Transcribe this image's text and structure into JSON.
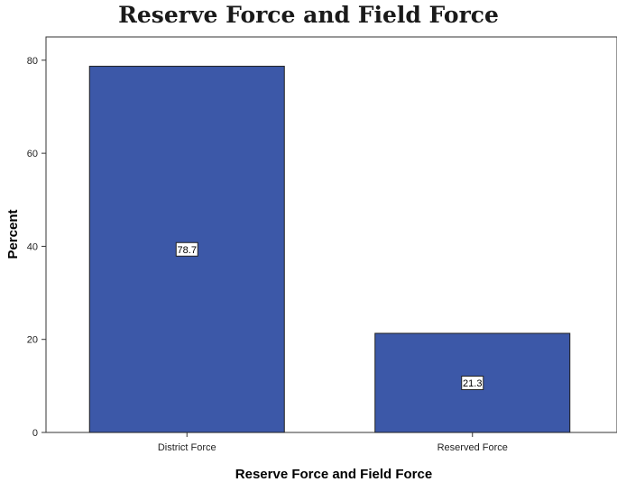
{
  "chart_data": {
    "type": "bar",
    "title": "Reserve Force and Field Force",
    "xlabel": "Reserve Force and Field Force",
    "ylabel": "Percent",
    "categories": [
      "District Force",
      "Reserved Force"
    ],
    "values": [
      78.7,
      21.3
    ],
    "data_labels": [
      "78.7",
      "21.3"
    ],
    "ylim": [
      0,
      85
    ],
    "yticks": [
      0,
      20,
      40,
      60,
      80
    ],
    "grid": false,
    "legend": "none",
    "bar_color": "#3c58a8",
    "bar_edge_color": "#1e1e1e"
  }
}
